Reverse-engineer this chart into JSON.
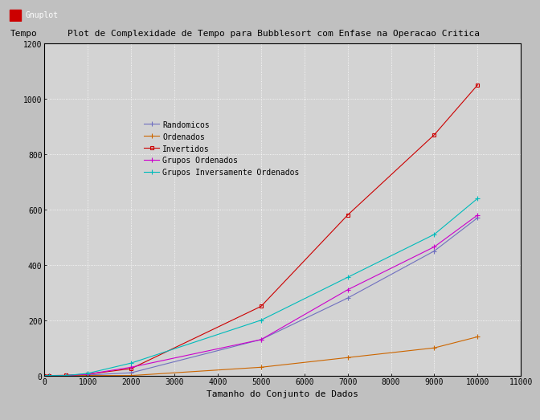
{
  "title": "Plot de Complexidade de Tempo para Bubblesort com Enfase na Operacao Critica",
  "ylabel": "Tempo",
  "xlabel": "Tamanho do Conjunto de Dados",
  "background_color": "#c0c0c0",
  "plot_bg_color": "#d3d3d3",
  "xlim": [
    0,
    11000
  ],
  "ylim": [
    0,
    1200
  ],
  "xticks": [
    0,
    1000,
    2000,
    3000,
    4000,
    5000,
    6000,
    7000,
    8000,
    9000,
    10000,
    11000
  ],
  "yticks": [
    0,
    200,
    400,
    600,
    800,
    1000,
    1200
  ],
  "series": [
    {
      "label": "Randomicos",
      "color": "#7070c0",
      "marker": "+",
      "x": [
        0,
        100,
        500,
        1000,
        2000,
        5000,
        7000,
        9000,
        10000
      ],
      "y": [
        0,
        0,
        0,
        2,
        10,
        130,
        280,
        450,
        570
      ]
    },
    {
      "label": "Ordenados",
      "color": "#cc6600",
      "marker": "+",
      "x": [
        0,
        100,
        500,
        1000,
        2000,
        5000,
        7000,
        9000,
        10000
      ],
      "y": [
        0,
        0,
        0,
        0,
        0,
        30,
        65,
        100,
        140
      ]
    },
    {
      "label": "Invertidos",
      "color": "#cc0000",
      "marker": "s",
      "x": [
        0,
        100,
        500,
        1000,
        2000,
        5000,
        7000,
        9000,
        10000
      ],
      "y": [
        0,
        0,
        1,
        5,
        25,
        250,
        580,
        870,
        1050
      ]
    },
    {
      "label": "Grupos Ordenados",
      "color": "#cc00cc",
      "marker": "+",
      "x": [
        0,
        100,
        500,
        1000,
        2000,
        5000,
        7000,
        9000,
        10000
      ],
      "y": [
        0,
        0,
        0,
        5,
        30,
        130,
        310,
        465,
        580
      ]
    },
    {
      "label": "Grupos Inversamente Ordenados",
      "color": "#00bbbb",
      "marker": "+",
      "x": [
        0,
        100,
        500,
        1000,
        2000,
        5000,
        7000,
        9000,
        10000
      ],
      "y": [
        0,
        0,
        0,
        8,
        45,
        200,
        355,
        510,
        640
      ]
    }
  ],
  "window_title": "Gnuplot",
  "window_bg": "#c0c0c0",
  "titlebar_bg": "#c0c0c0",
  "title_fontsize": 8,
  "axis_label_fontsize": 8,
  "tick_fontsize": 7,
  "legend_fontsize": 7
}
